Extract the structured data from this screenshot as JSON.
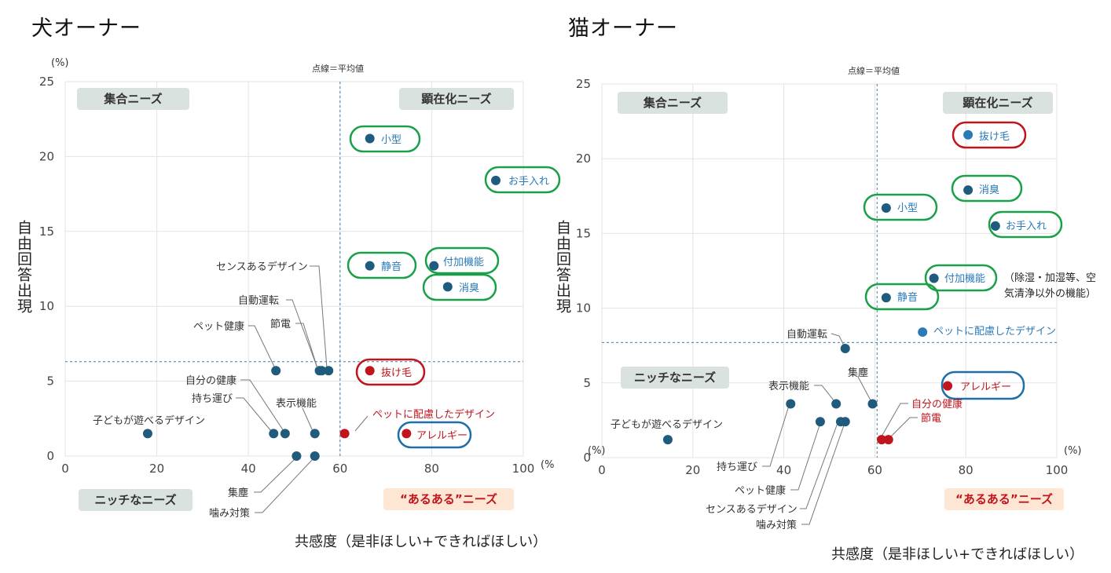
{
  "charts": [
    {
      "owner_label": "犬オーナー",
      "chart_data": {
        "type": "scatter",
        "title": "犬オーナー",
        "xlabel": "共感度（是非ほしい+できればほしい）",
        "ylabel": "自由回答出現",
        "x_unit": "(%",
        "y_unit": "(%)",
        "xlim": [
          0,
          100
        ],
        "ylim": [
          0,
          25
        ],
        "x_ticks": [
          "0",
          "20",
          "40",
          "60",
          "80",
          "100"
        ],
        "y_ticks": [
          "0",
          "5",
          "10",
          "15",
          "20",
          "25"
        ],
        "avg_x": 60,
        "avg_y": 6.3,
        "avg_note": "点線＝平均値",
        "quadrants": {
          "top_left": "集合ニーズ",
          "top_right": "顕在化ニーズ",
          "bottom_left": "ニッチなニーズ",
          "bottom_right": "“あるある”ニーズ"
        },
        "points": [
          {
            "label": "小型",
            "x": 66.5,
            "y": 21.2,
            "color": "#1f5b7c",
            "text_color": "#2a7ab8",
            "highlight": "#1aa049"
          },
          {
            "label": "お手入れ",
            "x": 94,
            "y": 18.4,
            "color": "#1f5b7c",
            "text_color": "#2a7ab8",
            "highlight": "#1aa049"
          },
          {
            "label": "静音",
            "x": 66.5,
            "y": 12.7,
            "color": "#1f5b7c",
            "text_color": "#2a7ab8",
            "highlight": "#1aa049"
          },
          {
            "label": "付加機能",
            "x": 80.5,
            "y": 12.7,
            "color": "#1f5b7c",
            "text_color": "#2a7ab8",
            "highlight": "#1aa049"
          },
          {
            "label": "消臭",
            "x": 83.5,
            "y": 11.3,
            "color": "#1f5b7c",
            "text_color": "#2a7ab8",
            "highlight": "#1aa049"
          },
          {
            "label": "抜け毛",
            "x": 66.5,
            "y": 5.7,
            "color": "#c0151c",
            "text_color": "#c0151c",
            "highlight": "#c0151c"
          },
          {
            "label": "アレルギー",
            "x": 74.5,
            "y": 1.5,
            "color": "#c0151c",
            "text_color": "#c0151c",
            "highlight": "#1e6fa8"
          },
          {
            "label": "ペットに配慮したデザイン",
            "x": 61,
            "y": 1.5,
            "color": "#c0151c",
            "text_color": "#c0151c",
            "highlight": null
          },
          {
            "label": "センスあるデザイン",
            "x": 57.5,
            "y": 5.7,
            "color": "#1f5b7c",
            "text_color": "#333333",
            "highlight": null
          },
          {
            "label": "自動運転",
            "x": 55.5,
            "y": 5.7,
            "color": "#1f5b7c",
            "text_color": "#333333",
            "highlight": null
          },
          {
            "label": "節電",
            "x": 56,
            "y": 5.7,
            "color": "#1f5b7c",
            "text_color": "#333333",
            "highlight": null
          },
          {
            "label": "ペット健康",
            "x": 46,
            "y": 5.7,
            "color": "#1f5b7c",
            "text_color": "#333333",
            "highlight": null
          },
          {
            "label": "自分の健康",
            "x": 48,
            "y": 1.5,
            "color": "#1f5b7c",
            "text_color": "#333333",
            "highlight": null
          },
          {
            "label": "持ち運び",
            "x": 45.5,
            "y": 1.5,
            "color": "#1f5b7c",
            "text_color": "#333333",
            "highlight": null
          },
          {
            "label": "表示機能",
            "x": 54.5,
            "y": 1.5,
            "color": "#1f5b7c",
            "text_color": "#333333",
            "highlight": null
          },
          {
            "label": "子どもが遊べるデザイン",
            "x": 18,
            "y": 1.5,
            "color": "#1f5b7c",
            "text_color": "#333333",
            "highlight": null
          },
          {
            "label": "集塵",
            "x": 50.5,
            "y": 0,
            "color": "#1f5b7c",
            "text_color": "#333333",
            "highlight": null
          },
          {
            "label": "噛み対策",
            "x": 54.5,
            "y": 0,
            "color": "#1f5b7c",
            "text_color": "#333333",
            "highlight": null
          }
        ],
        "side_note": []
      }
    },
    {
      "owner_label": "猫オーナー",
      "chart_data": {
        "type": "scatter",
        "title": "猫オーナー",
        "xlabel": "共感度（是非ほしい+できればほしい）",
        "ylabel": "自由回答出現",
        "x_unit": "(%)",
        "y_unit": "(%)",
        "xlim": [
          0,
          100
        ],
        "ylim": [
          0,
          25
        ],
        "x_ticks": [
          "0",
          "20",
          "40",
          "60",
          "80",
          "100"
        ],
        "y_ticks": [
          "0",
          "5",
          "10",
          "15",
          "20",
          "25"
        ],
        "avg_x": 60.5,
        "avg_y": 7.7,
        "avg_note": "点線＝平均値",
        "quadrants": {
          "top_left": "集合ニーズ",
          "top_right": "顕在化ニーズ",
          "bottom_left": "ニッチなニーズ",
          "bottom_right": "“あるある”ニーズ"
        },
        "points": [
          {
            "label": "抜け毛",
            "x": 80.5,
            "y": 21.6,
            "color": "#2a7ab8",
            "text_color": "#2a7ab8",
            "highlight": "#c0151c"
          },
          {
            "label": "消臭",
            "x": 80.5,
            "y": 17.9,
            "color": "#1f5b7c",
            "text_color": "#2a7ab8",
            "highlight": "#1aa049"
          },
          {
            "label": "小型",
            "x": 62.5,
            "y": 16.7,
            "color": "#1f5b7c",
            "text_color": "#2a7ab8",
            "highlight": "#1aa049"
          },
          {
            "label": "お手入れ",
            "x": 86.5,
            "y": 15.5,
            "color": "#1f5b7c",
            "text_color": "#2a7ab8",
            "highlight": "#1aa049"
          },
          {
            "label": "付加機能",
            "x": 73,
            "y": 12,
            "color": "#1f5b7c",
            "text_color": "#2a7ab8",
            "highlight": "#1aa049"
          },
          {
            "label": "静音",
            "x": 62.5,
            "y": 10.7,
            "color": "#1f5b7c",
            "text_color": "#2a7ab8",
            "highlight": "#1aa049"
          },
          {
            "label": "ペットに配慮したデザイン",
            "x": 70.5,
            "y": 8.4,
            "color": "#2a7ab8",
            "text_color": "#2a7ab8",
            "highlight": null
          },
          {
            "label": "アレルギー",
            "x": 76,
            "y": 4.8,
            "color": "#c0151c",
            "text_color": "#c0151c",
            "highlight": "#1e6fa8"
          },
          {
            "label": "自動運転",
            "x": 53.5,
            "y": 7.3,
            "color": "#1f5b7c",
            "text_color": "#333333",
            "highlight": null
          },
          {
            "label": "集塵",
            "x": 59.5,
            "y": 3.6,
            "color": "#1f5b7c",
            "text_color": "#333333",
            "highlight": null
          },
          {
            "label": "表示機能",
            "x": 51.5,
            "y": 3.6,
            "color": "#1f5b7c",
            "text_color": "#333333",
            "highlight": null
          },
          {
            "label": "自分の健康",
            "x": 61.5,
            "y": 1.2,
            "color": "#c0151c",
            "text_color": "#c0151c",
            "highlight": null
          },
          {
            "label": "節電",
            "x": 63,
            "y": 1.2,
            "color": "#c0151c",
            "text_color": "#c0151c",
            "highlight": null
          },
          {
            "label": "子どもが遊べるデザイン",
            "x": 14.5,
            "y": 1.2,
            "color": "#1f5b7c",
            "text_color": "#333333",
            "highlight": null
          },
          {
            "label": "持ち運び",
            "x": 41.5,
            "y": 3.6,
            "color": "#1f5b7c",
            "text_color": "#333333",
            "highlight": null
          },
          {
            "label": "ペット健康",
            "x": 48,
            "y": 2.4,
            "color": "#1f5b7c",
            "text_color": "#333333",
            "highlight": null
          },
          {
            "label": "センスあるデザイン",
            "x": 52.5,
            "y": 2.4,
            "color": "#1f5b7c",
            "text_color": "#333333",
            "highlight": null
          },
          {
            "label": "噛み対策",
            "x": 53.5,
            "y": 2.4,
            "color": "#1f5b7c",
            "text_color": "#333333",
            "highlight": null
          }
        ],
        "side_note": [
          "（除湿・加湿等、空",
          "気清浄以外の機能）"
        ]
      }
    }
  ]
}
